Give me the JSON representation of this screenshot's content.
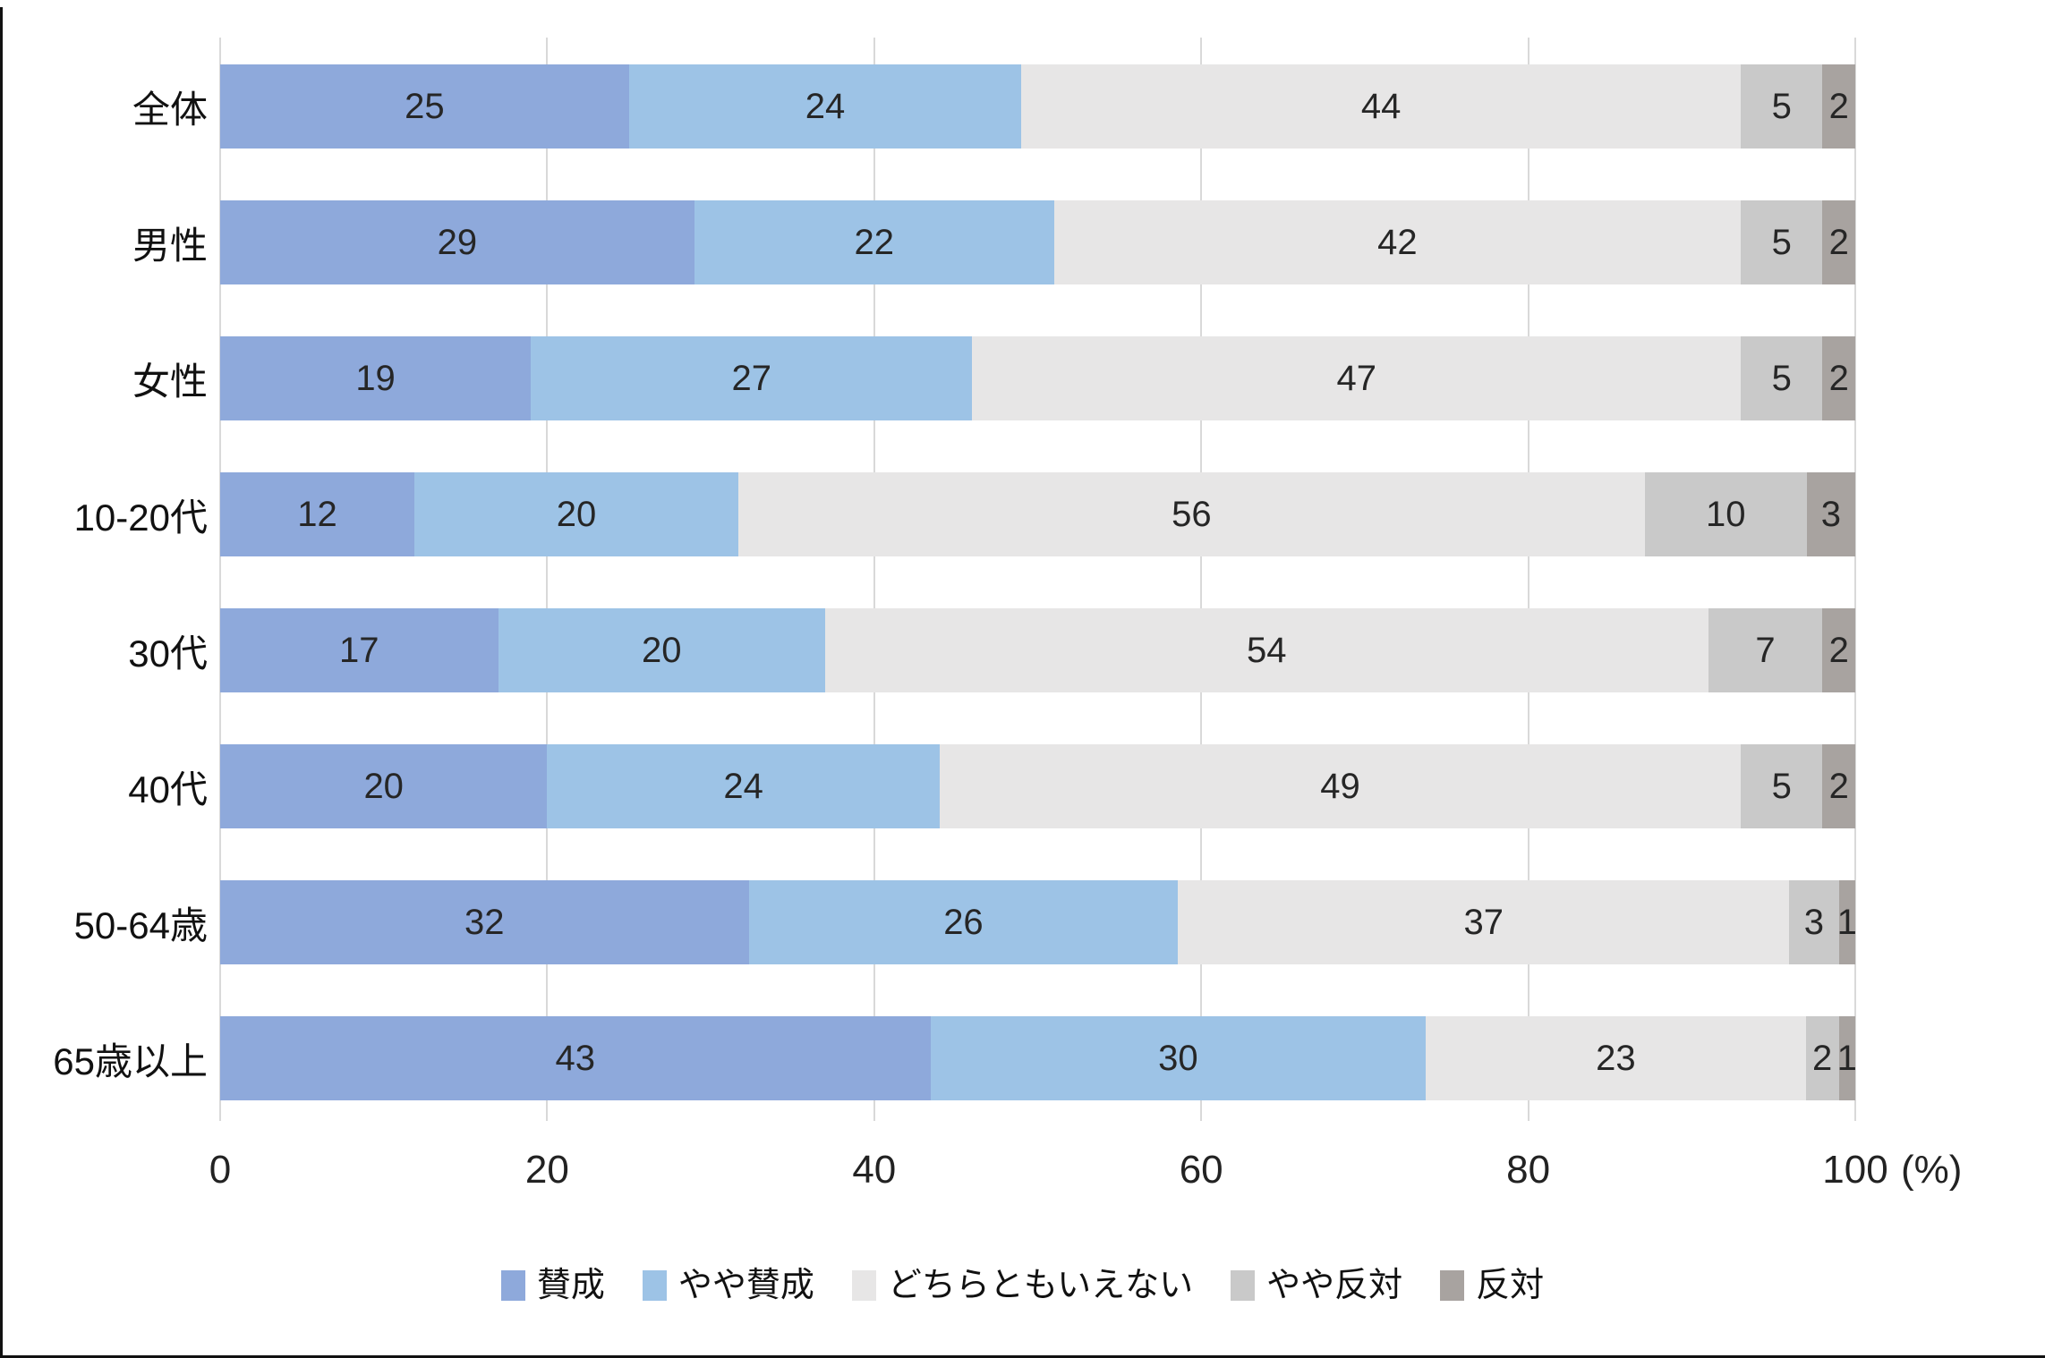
{
  "colors": {
    "series": [
      "#8ea9db",
      "#9dc3e6",
      "#e7e6e6",
      "#c9c9c9",
      "#a8a3a0"
    ],
    "gridline": "#d9d9d9",
    "segment_label": "#262626",
    "frame": "#111111"
  },
  "chart_data": {
    "type": "bar",
    "orientation": "horizontal",
    "stacked": true,
    "grid": true,
    "categories": [
      "全体",
      "男性",
      "女性",
      "10-20代",
      "30代",
      "40代",
      "50-64歳",
      "65歳以上"
    ],
    "series": [
      {
        "name": "賛成",
        "values": [
          25,
          29,
          19,
          12,
          17,
          20,
          32,
          43
        ]
      },
      {
        "name": "やや賛成",
        "values": [
          24,
          22,
          27,
          20,
          20,
          24,
          26,
          30
        ]
      },
      {
        "name": "どちらともいえない",
        "values": [
          44,
          42,
          47,
          56,
          54,
          49,
          37,
          23
        ]
      },
      {
        "name": "やや反対",
        "values": [
          5,
          5,
          5,
          10,
          7,
          5,
          3,
          2
        ]
      },
      {
        "name": "反対",
        "values": [
          2,
          2,
          2,
          3,
          2,
          2,
          1,
          1
        ]
      }
    ],
    "x_axis": {
      "range": [
        0,
        100
      ],
      "ticks": [
        0,
        20,
        40,
        60,
        80,
        100
      ],
      "unit_label": "(%)"
    },
    "legend": {
      "position": "bottom",
      "entries": [
        "賛成",
        "やや賛成",
        "どちらともいえない",
        "やや反対",
        "反対"
      ]
    }
  },
  "layout_labels": {
    "title": ""
  }
}
